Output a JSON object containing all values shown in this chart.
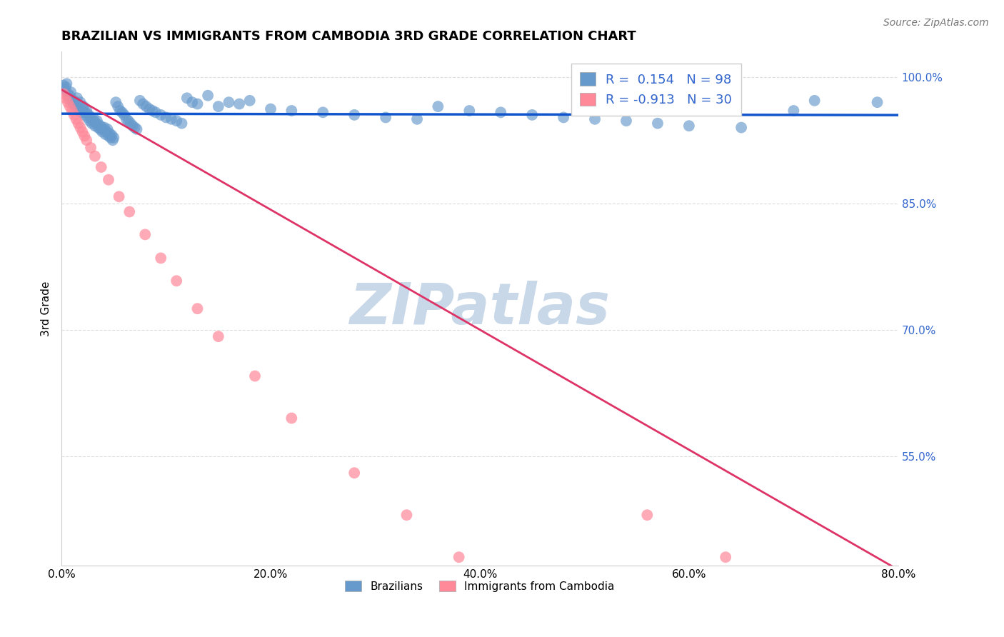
{
  "title": "BRAZILIAN VS IMMIGRANTS FROM CAMBODIA 3RD GRADE CORRELATION CHART",
  "source": "Source: ZipAtlas.com",
  "ylabel": "3rd Grade",
  "xlabel_ticks": [
    "0.0%",
    "20.0%",
    "40.0%",
    "60.0%",
    "80.0%"
  ],
  "xlabel_vals": [
    0.0,
    0.2,
    0.4,
    0.6,
    0.8
  ],
  "ylabel_ticks": [
    "100.0%",
    "85.0%",
    "70.0%",
    "55.0%"
  ],
  "ylabel_vals": [
    1.0,
    0.85,
    0.7,
    0.55
  ],
  "blue_R": 0.154,
  "blue_N": 98,
  "pink_R": -0.913,
  "pink_N": 30,
  "blue_color": "#6699CC",
  "pink_color": "#FF8899",
  "blue_line_color": "#1155CC",
  "pink_line_color": "#DD3366",
  "watermark_color": "#C8D8E8",
  "grid_color": "#DDDDDD",
  "xmin": 0.0,
  "xmax": 0.8,
  "ymin": 0.42,
  "ymax": 1.03,
  "legend_blue_label": "R =  0.154   N = 98",
  "legend_pink_label": "R = -0.913   N = 30",
  "legend_blue_label2": "Brazilians",
  "legend_pink_label2": "Immigrants from Cambodia",
  "blue_x": [
    0.002,
    0.003,
    0.004,
    0.005,
    0.006,
    0.007,
    0.008,
    0.009,
    0.01,
    0.011,
    0.012,
    0.013,
    0.014,
    0.015,
    0.016,
    0.017,
    0.018,
    0.019,
    0.02,
    0.021,
    0.022,
    0.023,
    0.024,
    0.025,
    0.026,
    0.027,
    0.028,
    0.029,
    0.03,
    0.031,
    0.032,
    0.033,
    0.034,
    0.035,
    0.036,
    0.037,
    0.038,
    0.039,
    0.04,
    0.041,
    0.042,
    0.043,
    0.044,
    0.045,
    0.046,
    0.047,
    0.048,
    0.049,
    0.05,
    0.052,
    0.054,
    0.056,
    0.058,
    0.06,
    0.062,
    0.064,
    0.066,
    0.068,
    0.07,
    0.072,
    0.075,
    0.078,
    0.081,
    0.084,
    0.087,
    0.09,
    0.095,
    0.1,
    0.105,
    0.11,
    0.115,
    0.12,
    0.125,
    0.13,
    0.14,
    0.15,
    0.16,
    0.17,
    0.18,
    0.2,
    0.22,
    0.25,
    0.28,
    0.31,
    0.34,
    0.36,
    0.39,
    0.42,
    0.45,
    0.48,
    0.51,
    0.54,
    0.57,
    0.6,
    0.65,
    0.7,
    0.72,
    0.78
  ],
  "blue_y": [
    0.99,
    0.985,
    0.988,
    0.992,
    0.98,
    0.975,
    0.978,
    0.982,
    0.97,
    0.968,
    0.972,
    0.965,
    0.968,
    0.975,
    0.96,
    0.963,
    0.97,
    0.958,
    0.962,
    0.965,
    0.955,
    0.958,
    0.96,
    0.952,
    0.955,
    0.948,
    0.952,
    0.945,
    0.948,
    0.95,
    0.942,
    0.945,
    0.948,
    0.94,
    0.943,
    0.938,
    0.941,
    0.935,
    0.938,
    0.94,
    0.932,
    0.935,
    0.938,
    0.93,
    0.933,
    0.928,
    0.931,
    0.925,
    0.928,
    0.97,
    0.965,
    0.96,
    0.958,
    0.955,
    0.95,
    0.948,
    0.945,
    0.942,
    0.94,
    0.938,
    0.972,
    0.968,
    0.965,
    0.962,
    0.96,
    0.958,
    0.955,
    0.952,
    0.95,
    0.948,
    0.945,
    0.975,
    0.97,
    0.968,
    0.978,
    0.965,
    0.97,
    0.968,
    0.972,
    0.962,
    0.96,
    0.958,
    0.955,
    0.952,
    0.95,
    0.965,
    0.96,
    0.958,
    0.955,
    0.952,
    0.95,
    0.948,
    0.945,
    0.942,
    0.94,
    0.96,
    0.972,
    0.97
  ],
  "pink_x": [
    0.002,
    0.004,
    0.006,
    0.008,
    0.01,
    0.012,
    0.014,
    0.016,
    0.018,
    0.02,
    0.022,
    0.024,
    0.028,
    0.032,
    0.038,
    0.045,
    0.055,
    0.065,
    0.08,
    0.095,
    0.11,
    0.13,
    0.15,
    0.185,
    0.22,
    0.28,
    0.33,
    0.38,
    0.56,
    0.635
  ],
  "pink_y": [
    0.98,
    0.975,
    0.97,
    0.965,
    0.96,
    0.955,
    0.95,
    0.945,
    0.94,
    0.935,
    0.93,
    0.925,
    0.916,
    0.906,
    0.893,
    0.878,
    0.858,
    0.84,
    0.813,
    0.785,
    0.758,
    0.725,
    0.692,
    0.645,
    0.595,
    0.53,
    0.48,
    0.43,
    0.48,
    0.43
  ],
  "pink_line_x0": 0.0,
  "pink_line_y0": 0.985,
  "pink_line_x1": 0.8,
  "pink_line_y1": 0.415
}
